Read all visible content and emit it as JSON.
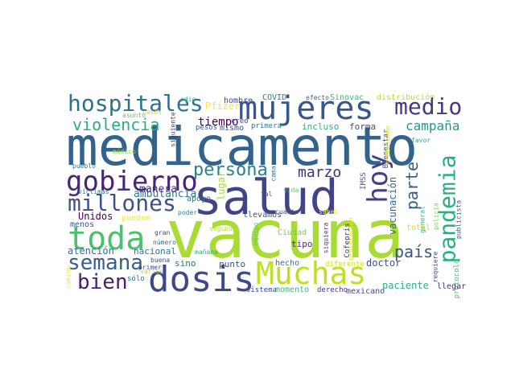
{
  "wordcloud": {
    "words": [
      {
        "text": "medicamento",
        "color": "#33638d"
      },
      {
        "text": "vacuna",
        "color": "#a8db34"
      },
      {
        "text": "salud",
        "color": "#414487"
      },
      {
        "text": "mujeres",
        "color": "#39568c"
      },
      {
        "text": "dosis",
        "color": "#3e4989"
      },
      {
        "text": "Muchas",
        "color": "#bddf26"
      },
      {
        "text": "hospitales",
        "color": "#2c728e"
      },
      {
        "text": "gobierno",
        "color": "#482677"
      },
      {
        "text": "toda",
        "color": "#4ac16d"
      },
      {
        "text": "millones",
        "color": "#3b528b"
      },
      {
        "text": "medio",
        "color": "#453781"
      },
      {
        "text": "hoy",
        "color": "#433e85"
      },
      {
        "text": "pandemia",
        "color": "#29af7f"
      },
      {
        "text": "semana",
        "color": "#355f8d"
      },
      {
        "text": "bien",
        "color": "#481f70"
      },
      {
        "text": "violencia",
        "color": "#27ad81"
      },
      {
        "text": "persona",
        "color": "#26828e"
      },
      {
        "text": "marzo",
        "color": "#472d7b"
      },
      {
        "text": "parte",
        "color": "#365c8d"
      },
      {
        "text": "país",
        "color": "#3b528b"
      },
      {
        "text": "campaña",
        "color": "#1f9a8a"
      },
      {
        "text": "tiempo",
        "color": "#440154"
      },
      {
        "text": "Pfizer",
        "color": "#fde725"
      },
      {
        "text": "vacunación",
        "color": "#31688e"
      },
      {
        "text": "ambulancia",
        "color": "#2a788e"
      },
      {
        "text": "manera",
        "color": "#46337e"
      },
      {
        "text": "COVID",
        "color": "#25848e"
      },
      {
        "text": "Sinovac",
        "color": "#31b57b"
      },
      {
        "text": "distribución",
        "color": "#b8de29"
      },
      {
        "text": "incluso",
        "color": "#2db27d"
      },
      {
        "text": "forma",
        "color": "#3b528b"
      },
      {
        "text": "hombre",
        "color": "#3f4788"
      },
      {
        "text": "mismo",
        "color": "#3b528b"
      },
      {
        "text": "Unidos",
        "color": "#440154"
      },
      {
        "text": "pueden",
        "color": "#fde725"
      },
      {
        "text": "atención",
        "color": "#2d708e"
      },
      {
        "text": "nacional",
        "color": "#2a788e"
      },
      {
        "text": "sino",
        "color": "#2c728e"
      },
      {
        "text": "punto",
        "color": "#3b528b"
      },
      {
        "text": "doctor",
        "color": "#3b528b"
      },
      {
        "text": "paciente",
        "color": "#29af7f"
      },
      {
        "text": "momento",
        "color": "#35b779"
      },
      {
        "text": "mexicano",
        "color": "#3f4788"
      },
      {
        "text": "derecho",
        "color": "#453781"
      },
      {
        "text": "sistema",
        "color": "#3e4989"
      },
      {
        "text": "IMSS",
        "color": "#39568c"
      },
      {
        "text": "Bienestar",
        "color": "#39568c"
      },
      {
        "text": "general",
        "color": "#2db27d"
      },
      {
        "text": "total",
        "color": "#d2e21b"
      },
      {
        "text": "tipo",
        "color": "#482878"
      },
      {
        "text": "Ciudad",
        "color": "#75d054"
      },
      {
        "text": "hecho",
        "color": "#2c728e"
      },
      {
        "text": "Cofepris",
        "color": "#482878"
      },
      {
        "text": "siquiera",
        "color": "#46337e"
      },
      {
        "text": "diferente",
        "color": "#d2e21b"
      },
      {
        "text": "provocación",
        "color": "#e5e419"
      },
      {
        "text": "trabajando",
        "color": "#dde318"
      },
      {
        "text": "favor",
        "color": "#27ad81"
      },
      {
        "text": "policía",
        "color": "#7ad151"
      },
      {
        "text": "publicista",
        "color": "#39568c"
      },
      {
        "text": "requiere",
        "color": "#3e4989"
      },
      {
        "text": "protocolo",
        "color": "#4ac16d"
      },
      {
        "text": "llegar",
        "color": "#472d7b"
      },
      {
        "text": "odio",
        "color": "#31b57b"
      },
      {
        "text": "casos",
        "color": "#bddf26"
      },
      {
        "text": "asunto",
        "color": "#5ec962"
      },
      {
        "text": "siguiente",
        "color": "#453781"
      },
      {
        "text": "pesos",
        "color": "#3b528b"
      },
      {
        "text": "creo",
        "color": "#3f4788"
      },
      {
        "text": "primera",
        "color": "#2a788e"
      },
      {
        "text": "efecto",
        "color": "#33638d"
      },
      {
        "text": "médico",
        "color": "#93d741"
      },
      {
        "text": "pueblo",
        "color": "#2a788e"
      },
      {
        "text": "víctimas",
        "color": "#2a788e"
      },
      {
        "text": "menos",
        "color": "#3b528b"
      },
      {
        "text": "apoyo",
        "color": "#2c728e"
      },
      {
        "text": "lugar",
        "color": "#a8db34"
      },
      {
        "text": "poder",
        "color": "#26828e"
      },
      {
        "text": "llevamos",
        "color": "#3b528b"
      },
      {
        "text": "cuanto",
        "color": "#3b528b"
      },
      {
        "text": "saben",
        "color": "#fde725"
      },
      {
        "text": "cama",
        "color": "#2c728e"
      },
      {
        "text": "vida",
        "color": "#5ec962"
      },
      {
        "text": "tal",
        "color": "#3b528b"
      },
      {
        "text": "gran",
        "color": "#3f4788"
      },
      {
        "text": "número",
        "color": "#2c728e"
      },
      {
        "text": "segundo",
        "color": "#b8de29"
      },
      {
        "text": "equipo",
        "color": "#5ec962"
      },
      {
        "text": "buena",
        "color": "#3b528b"
      },
      {
        "text": "varias",
        "color": "#b8de29"
      },
      {
        "text": "camino",
        "color": "#fde725"
      },
      {
        "text": "sólo",
        "color": "#2c728e"
      },
      {
        "text": "mañana",
        "color": "#2db27d"
      },
      {
        "text": "primer",
        "color": "#3b528b"
      }
    ]
  }
}
